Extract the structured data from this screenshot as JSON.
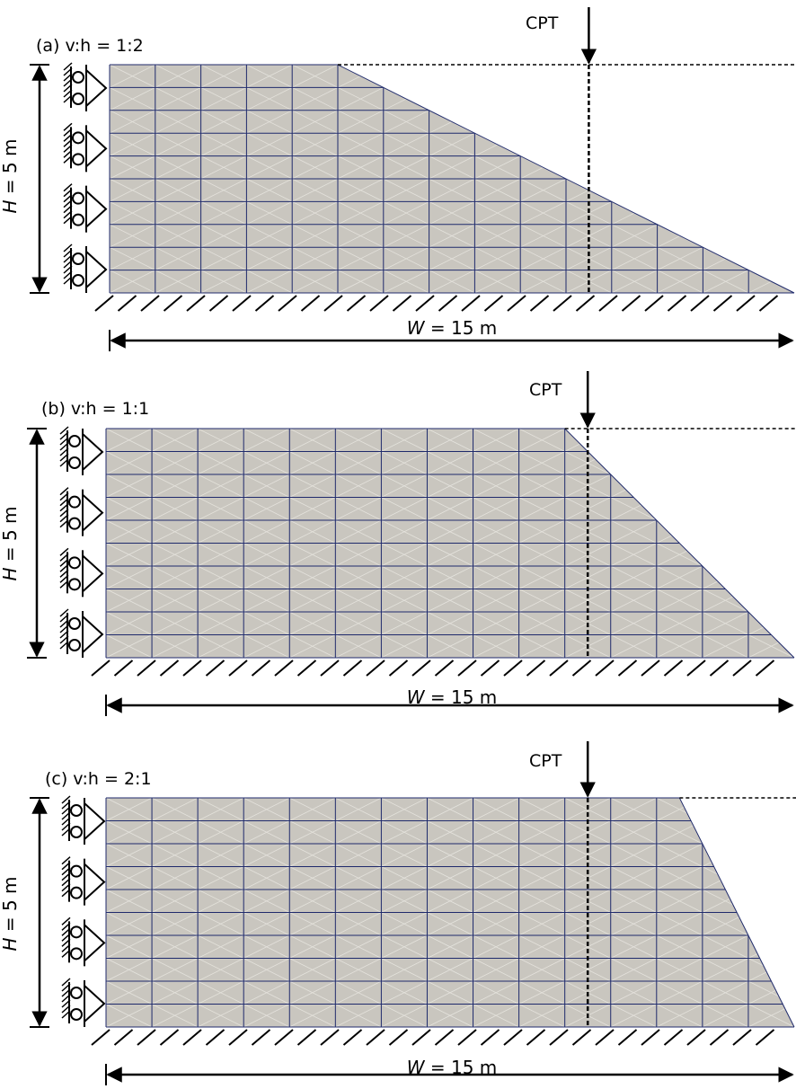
{
  "panels": [
    {
      "id": "a",
      "label": "(a) v:h = 1:2",
      "cpt_label": "CPT",
      "h_label_var": "H",
      "h_label_rest": " = 5 m",
      "w_label_var": "W",
      "w_label_rest": " = 15 m",
      "slope_ratio": "1:2",
      "width_m": 15,
      "height_m": 5,
      "crest_length_m": 5,
      "cpt_position_m": 10.5,
      "support_count": 4
    },
    {
      "id": "b",
      "label": "(b) v:h = 1:1",
      "cpt_label": "CPT",
      "h_label_var": "H",
      "h_label_rest": " = 5 m",
      "w_label_var": "W",
      "w_label_rest": " = 15 m",
      "slope_ratio": "1:1",
      "width_m": 15,
      "height_m": 5,
      "crest_length_m": 10,
      "cpt_position_m": 10.5,
      "support_count": 4
    },
    {
      "id": "c",
      "label": "(c) v:h = 2:1",
      "cpt_label": "CPT",
      "h_label_var": "H",
      "h_label_rest": " = 5 m",
      "w_label_var": "W",
      "w_label_rest": " = 15 m",
      "slope_ratio": "2:1",
      "width_m": 15,
      "height_m": 5,
      "crest_length_m": 12.5,
      "cpt_position_m": 10.5,
      "support_count": 4
    }
  ],
  "colors": {
    "soil_fill": "#c9c6bf",
    "mesh_major": "#1f2a6b",
    "mesh_minor": "#e4e2dc",
    "line": "#000000"
  }
}
